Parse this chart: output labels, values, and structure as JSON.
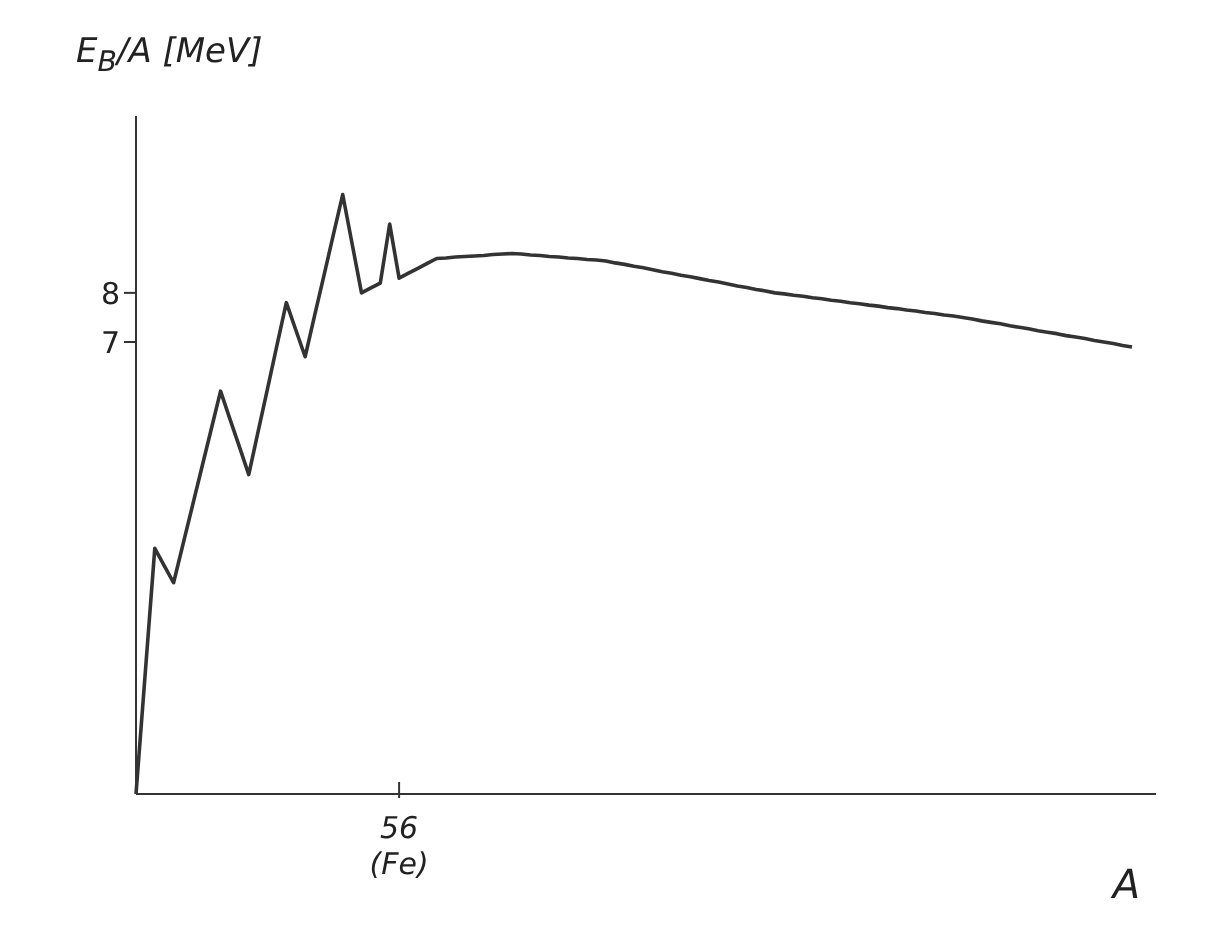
{
  "chart_data": {
    "type": "line",
    "xlabel": "A",
    "ylabel": "E$_{B}$/A [MeV]",
    "categories": [
      null,
      null,
      null,
      null,
      null,
      null,
      null,
      null,
      null,
      null,
      null,
      null,
      null,
      null,
      null,
      null,
      null,
      null,
      null,
      null,
      null,
      null,
      null,
      null,
      null,
      null,
      null,
      null,
      "56",
      null,
      null,
      null,
      null,
      null,
      null,
      null,
      null,
      null,
      null,
      null,
      null,
      null,
      null,
      null,
      null,
      null,
      null,
      null,
      null,
      null,
      null,
      null,
      null,
      null,
      null,
      null,
      null,
      null,
      null,
      null,
      null,
      null,
      null,
      null,
      null,
      null,
      null,
      null,
      null,
      null,
      null,
      null,
      null,
      null,
      null,
      null,
      null,
      null,
      null,
      null,
      null,
      null,
      null,
      null,
      null,
      null,
      null,
      null,
      null,
      null,
      null,
      null,
      null,
      null,
      null,
      null,
      null,
      null,
      null,
      null,
      null,
      null,
      null,
      null,
      null,
      null,
      null
    ],
    "annotations": [
      "(Fe)"
    ],
    "series": [
      {
        "color": "#333333",
        "values": [
          -2.2,
          0.3,
          2.8,
          2.45,
          2.1,
          2.88,
          3.66,
          4.44,
          5.22,
          6.0,
          5.43,
          4.87,
          4.3,
          5.18,
          6.05,
          6.93,
          7.8,
          7.25,
          6.7,
          7.53,
          8.35,
          9.18,
          10.0,
          9.0,
          8.0,
          8.1,
          8.2,
          9.4,
          8.3,
          8.4,
          8.5,
          8.6,
          8.7,
          8.71,
          8.73,
          8.74,
          8.75,
          8.76,
          8.78,
          8.79,
          8.8,
          8.79,
          8.77,
          8.76,
          8.74,
          8.73,
          8.71,
          8.7,
          8.68,
          8.67,
          8.65,
          8.61,
          8.58,
          8.54,
          8.51,
          8.47,
          8.43,
          8.4,
          8.36,
          8.33,
          8.29,
          8.25,
          8.22,
          8.18,
          8.14,
          8.11,
          8.07,
          8.04,
          8.0,
          7.98,
          7.95,
          7.93,
          7.9,
          7.88,
          7.85,
          7.83,
          7.8,
          7.78,
          7.75,
          7.73,
          7.7,
          7.68,
          7.65,
          7.63,
          7.6,
          7.58,
          7.55,
          7.53,
          7.5,
          7.47,
          7.43,
          7.4,
          7.37,
          7.33,
          7.3,
          7.27,
          7.23,
          7.2,
          7.17,
          7.13,
          7.1,
          7.07,
          7.03,
          7.0,
          6.97,
          6.93,
          6.9
        ]
      }
    ],
    "ylim": [
      -2.2,
      11.6
    ],
    "yticks": [
      7,
      8
    ],
    "marker": "none",
    "line_style": "solid"
  }
}
